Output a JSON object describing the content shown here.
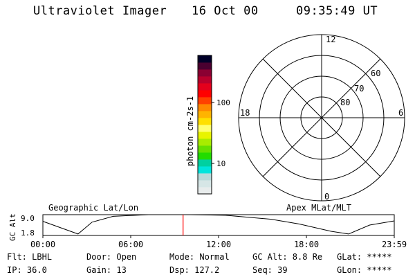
{
  "header": {
    "instrument": "Ultraviolet Imager",
    "date": "16 Oct 00",
    "time": "09:35:49 UT"
  },
  "colorbar": {
    "label": "photon cm-2s-1",
    "ticks": [
      {
        "value": 100,
        "label": "100"
      },
      {
        "value": 10,
        "label": "10"
      }
    ],
    "colors": [
      "#e8ecec",
      "#d6e6e6",
      "#b8dada",
      "#00e4dc",
      "#00d0a0",
      "#22dc00",
      "#66e000",
      "#a8ec00",
      "#e8f400",
      "#ffff70",
      "#ffe000",
      "#ffb400",
      "#ff8800",
      "#ff4000",
      "#ff0000",
      "#e4001c",
      "#b8002c",
      "#8a0032",
      "#4a0030",
      "#000028"
    ]
  },
  "polar_plot": {
    "lat_labels": [
      "80",
      "70",
      "60"
    ],
    "mlt_labels": {
      "top": "12",
      "left": "18",
      "right": "6",
      "bottom": "0"
    }
  },
  "timeline": {
    "left_title": "Geographic Lat/Lon",
    "right_title": "Apex MLat/MLT",
    "ylabel": "GC Alt",
    "yticks": [
      "9.0",
      "1.8"
    ],
    "xticks": [
      "00:00",
      "06:00",
      "12:00",
      "18:00",
      "23:59"
    ],
    "current_fraction": 0.399
  },
  "info": {
    "filter": "Flt: LBHL",
    "door": "Door: Open",
    "mode": "Mode: Normal",
    "gc_alt": "GC Alt: 8.8 Re",
    "glat": "GLat: *****",
    "ip": "IP: 36.0",
    "gain": "Gain: 13",
    "dsp": "Dsp:  127.2",
    "seq": "Seq: 39",
    "glon": "GLon: *****"
  },
  "colors": {
    "current_marker": "#ff0000"
  }
}
